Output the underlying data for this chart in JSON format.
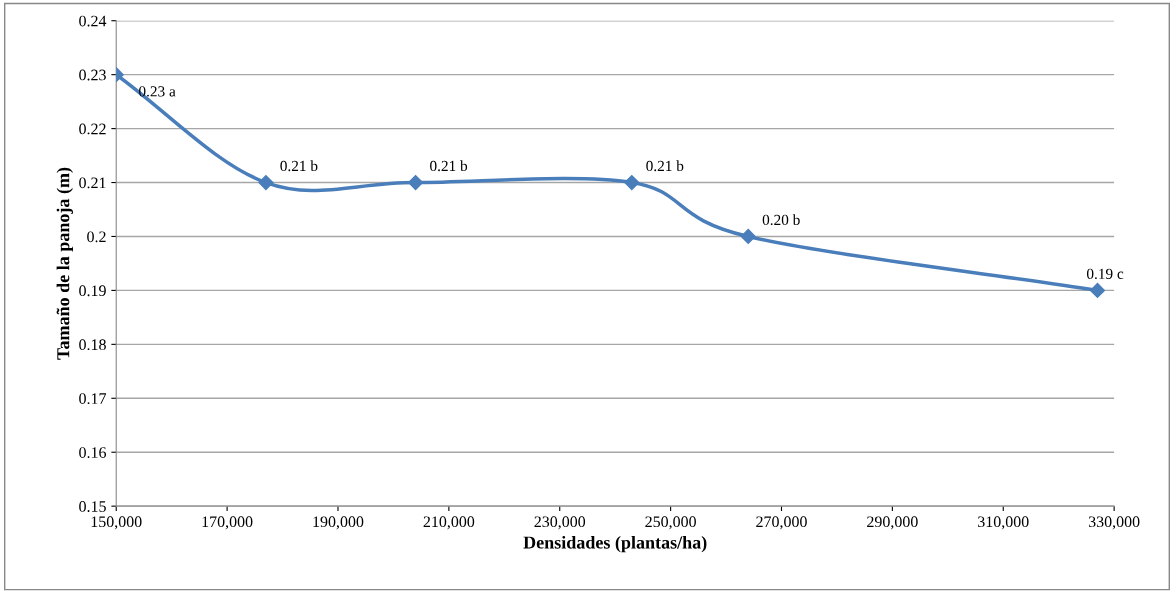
{
  "chart_data": {
    "type": "line",
    "xlabel": "Densidades (plantas/ha)",
    "ylabel": "Tamaño de la panoja (m)",
    "x": [
      150000,
      177000,
      204000,
      243000,
      264000,
      327000
    ],
    "series": [
      {
        "color": "#4a7ebb",
        "values": [
          0.23,
          0.21,
          0.21,
          0.21,
          0.2,
          0.19
        ],
        "value_labels": [
          "0.23 a",
          "0.21 b",
          "0.21 b",
          "0.21 b",
          "0.20 b",
          "0.19 c"
        ]
      }
    ],
    "xlim": [
      150000,
      330000
    ],
    "xticks": [
      {
        "value": 150000,
        "label": "150,000"
      },
      {
        "value": 170000,
        "label": "170,000"
      },
      {
        "value": 190000,
        "label": "190,000"
      },
      {
        "value": 210000,
        "label": "210,000"
      },
      {
        "value": 230000,
        "label": "230,000"
      },
      {
        "value": 250000,
        "label": "250,000"
      },
      {
        "value": 270000,
        "label": "270,000"
      },
      {
        "value": 290000,
        "label": "290,000"
      },
      {
        "value": 310000,
        "label": "310,000"
      },
      {
        "value": 330000,
        "label": "330,000"
      }
    ],
    "ylim": [
      0.15,
      0.24
    ],
    "yticks": [
      0.15,
      0.16,
      0.17,
      0.18,
      0.19,
      {
        "value": 0.2,
        "label": "0.2"
      },
      0.21,
      0.22,
      0.23,
      0.24
    ],
    "grid": "y",
    "marker": "diamond",
    "line_style": "solid"
  }
}
